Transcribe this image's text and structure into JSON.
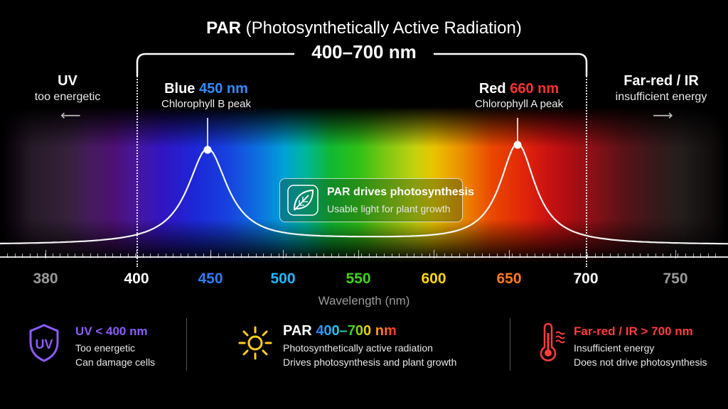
{
  "header": {
    "title_bold": "PAR",
    "title_rest": " (Photosynthetically Active Radiation)",
    "range": "400–700 nm"
  },
  "sides": {
    "uv": {
      "title": "UV",
      "sub": "too energetic",
      "arrow": "⟵"
    },
    "ir": {
      "title": "Far-red / IR",
      "sub": "insufficient energy",
      "arrow": "⟶"
    }
  },
  "peaks": [
    {
      "name": "Blue",
      "nm": "450 nm",
      "sub": "Chlorophyll B peak",
      "color": "#2f8cff"
    },
    {
      "name": "Red",
      "nm": "660 nm",
      "sub": "Chlorophyll A peak",
      "color": "#ff3030"
    }
  ],
  "callout": {
    "title": "PAR drives photosynthesis",
    "sub": "Usable light for plant growth",
    "icon": "leaf-icon"
  },
  "axis": {
    "label": "Wavelength (nm)",
    "ticks": [
      {
        "label": "380",
        "color": "#9a9a9a"
      },
      {
        "label": "400",
        "color": "#ffffff"
      },
      {
        "label": "450",
        "color": "#2f7df5"
      },
      {
        "label": "500",
        "color": "#21b8ff"
      },
      {
        "label": "550",
        "color": "#3fd31a"
      },
      {
        "label": "600",
        "color": "#ffd500"
      },
      {
        "label": "650",
        "color": "#ff7a1a"
      },
      {
        "label": "700",
        "color": "#ffffff"
      },
      {
        "label": "750",
        "color": "#9a9a9a"
      }
    ]
  },
  "legend": {
    "uv": {
      "icon": "uv-shield-icon",
      "icon_text": "UV",
      "title": "UV < 400 nm",
      "color": "#8b5cf6",
      "lines": [
        "Too energetic",
        "Can damage cells"
      ]
    },
    "par": {
      "icon": "sun-icon",
      "title_bold": "PAR",
      "title_range": "400–700 nm",
      "lines": [
        "Photosynthetically active radiation",
        "Drives photosynthesis and plant growth"
      ]
    },
    "ir": {
      "icon": "thermometer-icon",
      "title": "Far-red / IR > 700 nm",
      "color": "#ff3b3b",
      "lines": [
        "Insufficient energy",
        "Does not drive photosynthesis"
      ]
    }
  },
  "chart_data": {
    "type": "line",
    "xlabel": "Wavelength (nm)",
    "xlim": [
      380,
      750
    ],
    "par_range": [
      400,
      700
    ],
    "peaks": [
      450,
      660
    ],
    "series": [
      {
        "name": "",
        "peaks_at": [
          450,
          660
        ]
      }
    ]
  }
}
